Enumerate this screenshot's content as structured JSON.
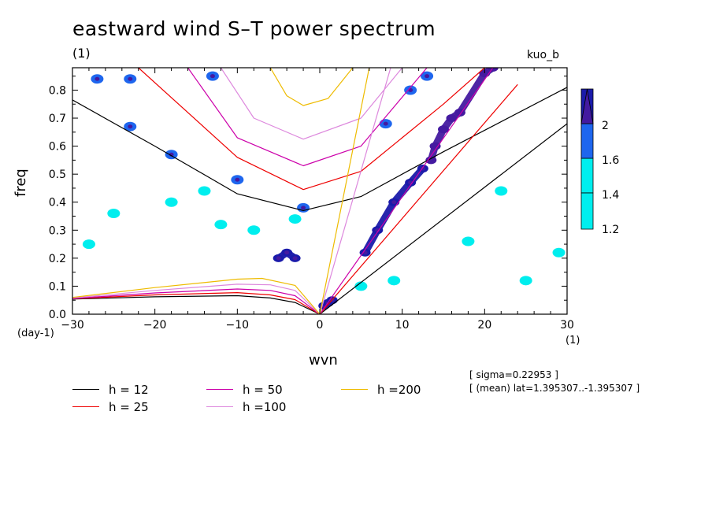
{
  "title": "eastward wind S–T power spectrum",
  "subtitle_left": "(1)",
  "subtitle_right": "kuo_b",
  "xlabel": "wvn",
  "ylabel": "freq",
  "y_unit": "(day-1)",
  "x_unit": "(1)",
  "info": [
    "[ sigma=0.22953 ]",
    "[ (mean) lat=1.395307..-1.395307 ]"
  ],
  "colors": {
    "h12": "#000000",
    "h25": "#ee0000",
    "h50": "#cc00aa",
    "h100": "#dd88dd",
    "h200": "#eebb00",
    "shade_12": "#00eeee",
    "shade_14": "#1e66ee",
    "shade_16": "#1a1aaa",
    "shade_2": "#441aa0"
  },
  "legend": [
    {
      "label": "h = 12",
      "color": "#000000"
    },
    {
      "label": "h = 25",
      "color": "#ee0000"
    },
    {
      "label": "h = 50",
      "color": "#cc00aa"
    },
    {
      "label": "h =100",
      "color": "#dd88dd"
    },
    {
      "label": "h =200",
      "color": "#eebb00"
    }
  ],
  "colorbar": {
    "ticks": [
      "1.2",
      "1.4",
      "1.6",
      "2"
    ]
  },
  "chart_data": {
    "type": "heatmap",
    "title": "eastward wind S–T power spectrum",
    "xlabel": "wvn",
    "ylabel": "freq",
    "xlim": [
      -30,
      30
    ],
    "ylim": [
      0,
      0.88
    ],
    "x_ticks": [
      -30,
      -20,
      -10,
      0,
      10,
      20,
      30
    ],
    "x_tick_labels": [
      "−30",
      "−20",
      "−10",
      "0",
      "10",
      "20",
      "30"
    ],
    "y_ticks": [
      0.0,
      0.1,
      0.2,
      0.3,
      0.4,
      0.5,
      0.6,
      0.7,
      0.8
    ],
    "y_tick_labels": [
      "0.0",
      "0.1",
      "0.2",
      "0.3",
      "0.4",
      "0.5",
      "0.6",
      "0.7",
      "0.8"
    ],
    "contour_levels": [
      1.2,
      1.4,
      1.6,
      2
    ],
    "kelvin_wave_lines": [
      {
        "h": 12,
        "points": [
          [
            0,
            0
          ],
          [
            30,
            0.68
          ]
        ]
      },
      {
        "h": 25,
        "points": [
          [
            0,
            0
          ],
          [
            24,
            0.82
          ]
        ]
      },
      {
        "h": 50,
        "points": [
          [
            0,
            0
          ],
          [
            21,
            0.88
          ]
        ]
      },
      {
        "h": 100,
        "points": [
          [
            0,
            0
          ],
          [
            8.6,
            0.88
          ]
        ]
      },
      {
        "h": 200,
        "points": [
          [
            0,
            0
          ],
          [
            6.0,
            0.88
          ]
        ]
      }
    ],
    "rossby_curves": [
      {
        "h": 12,
        "points": [
          [
            -30,
            0.054
          ],
          [
            -20,
            0.062
          ],
          [
            -10,
            0.066
          ],
          [
            -6,
            0.058
          ],
          [
            -3,
            0.042
          ],
          [
            0,
            0
          ]
        ]
      },
      {
        "h": 25,
        "points": [
          [
            -30,
            0.055
          ],
          [
            -20,
            0.069
          ],
          [
            -10,
            0.077
          ],
          [
            -6,
            0.069
          ],
          [
            -3,
            0.052
          ],
          [
            0,
            0
          ]
        ]
      },
      {
        "h": 50,
        "points": [
          [
            -30,
            0.056
          ],
          [
            -20,
            0.076
          ],
          [
            -10,
            0.09
          ],
          [
            -6,
            0.085
          ],
          [
            -3,
            0.066
          ],
          [
            0,
            0
          ]
        ]
      },
      {
        "h": 100,
        "points": [
          [
            -30,
            0.058
          ],
          [
            -20,
            0.085
          ],
          [
            -10,
            0.107
          ],
          [
            -6,
            0.105
          ],
          [
            -3,
            0.085
          ],
          [
            0,
            0
          ]
        ]
      },
      {
        "h": 200,
        "points": [
          [
            -30,
            0.06
          ],
          [
            -20,
            0.095
          ],
          [
            -10,
            0.125
          ],
          [
            -7,
            0.128
          ],
          [
            -3,
            0.103
          ],
          [
            0,
            0
          ]
        ]
      }
    ],
    "gravity_curves": [
      {
        "h": 12,
        "points": [
          [
            -30,
            0.765
          ],
          [
            -20,
            0.6
          ],
          [
            -10,
            0.43
          ],
          [
            -2,
            0.37
          ],
          [
            5,
            0.42
          ],
          [
            15,
            0.58
          ],
          [
            30,
            0.81
          ]
        ]
      },
      {
        "h": 25,
        "points": [
          [
            -22,
            0.88
          ],
          [
            -10,
            0.56
          ],
          [
            -2,
            0.445
          ],
          [
            5,
            0.51
          ],
          [
            15,
            0.75
          ],
          [
            20,
            0.88
          ]
        ]
      },
      {
        "h": 50,
        "points": [
          [
            -16,
            0.88
          ],
          [
            -10,
            0.63
          ],
          [
            -2,
            0.53
          ],
          [
            5,
            0.6
          ],
          [
            13,
            0.88
          ]
        ]
      },
      {
        "h": 100,
        "points": [
          [
            -12,
            0.88
          ],
          [
            -8,
            0.7
          ],
          [
            -2,
            0.625
          ],
          [
            5,
            0.7
          ],
          [
            10,
            0.88
          ]
        ]
      },
      {
        "h": 200,
        "points": [
          [
            -6,
            0.88
          ],
          [
            -4,
            0.78
          ],
          [
            -2,
            0.745
          ],
          [
            1,
            0.77
          ],
          [
            4,
            0.88
          ]
        ]
      }
    ],
    "high_power_regions": [
      {
        "level": 2,
        "points": [
          [
            13.5,
            0.55
          ],
          [
            14,
            0.6
          ],
          [
            15,
            0.66
          ],
          [
            16,
            0.7
          ],
          [
            17,
            0.72
          ],
          [
            20,
            0.86
          ],
          [
            21,
            0.88
          ]
        ]
      },
      {
        "level": 1.6,
        "points": [
          [
            5.5,
            0.22
          ],
          [
            7,
            0.3
          ],
          [
            9,
            0.4
          ],
          [
            11,
            0.47
          ],
          [
            12.5,
            0.52
          ]
        ]
      },
      {
        "level": 1.6,
        "points": [
          [
            -5,
            0.2
          ],
          [
            -4,
            0.22
          ],
          [
            -3,
            0.2
          ]
        ]
      },
      {
        "level": 1.6,
        "points": [
          [
            0.5,
            0.03
          ],
          [
            1,
            0.04
          ],
          [
            1.5,
            0.05
          ]
        ]
      },
      {
        "level": 1.4,
        "points": [
          [
            -27,
            0.84
          ],
          [
            -23,
            0.84
          ],
          [
            -13,
            0.85
          ],
          [
            -18,
            0.57
          ],
          [
            -23,
            0.67
          ],
          [
            -10,
            0.48
          ],
          [
            -2,
            0.38
          ],
          [
            8,
            0.68
          ],
          [
            11,
            0.8
          ],
          [
            13,
            0.85
          ]
        ]
      },
      {
        "level": 1.2,
        "points": [
          [
            -28,
            0.25
          ],
          [
            -25,
            0.36
          ],
          [
            -18,
            0.4
          ],
          [
            -14,
            0.44
          ],
          [
            -12,
            0.32
          ],
          [
            -8,
            0.3
          ],
          [
            -3,
            0.34
          ],
          [
            5,
            0.1
          ],
          [
            9,
            0.12
          ],
          [
            18,
            0.26
          ],
          [
            22,
            0.44
          ],
          [
            25,
            0.12
          ],
          [
            29,
            0.22
          ]
        ]
      }
    ]
  }
}
